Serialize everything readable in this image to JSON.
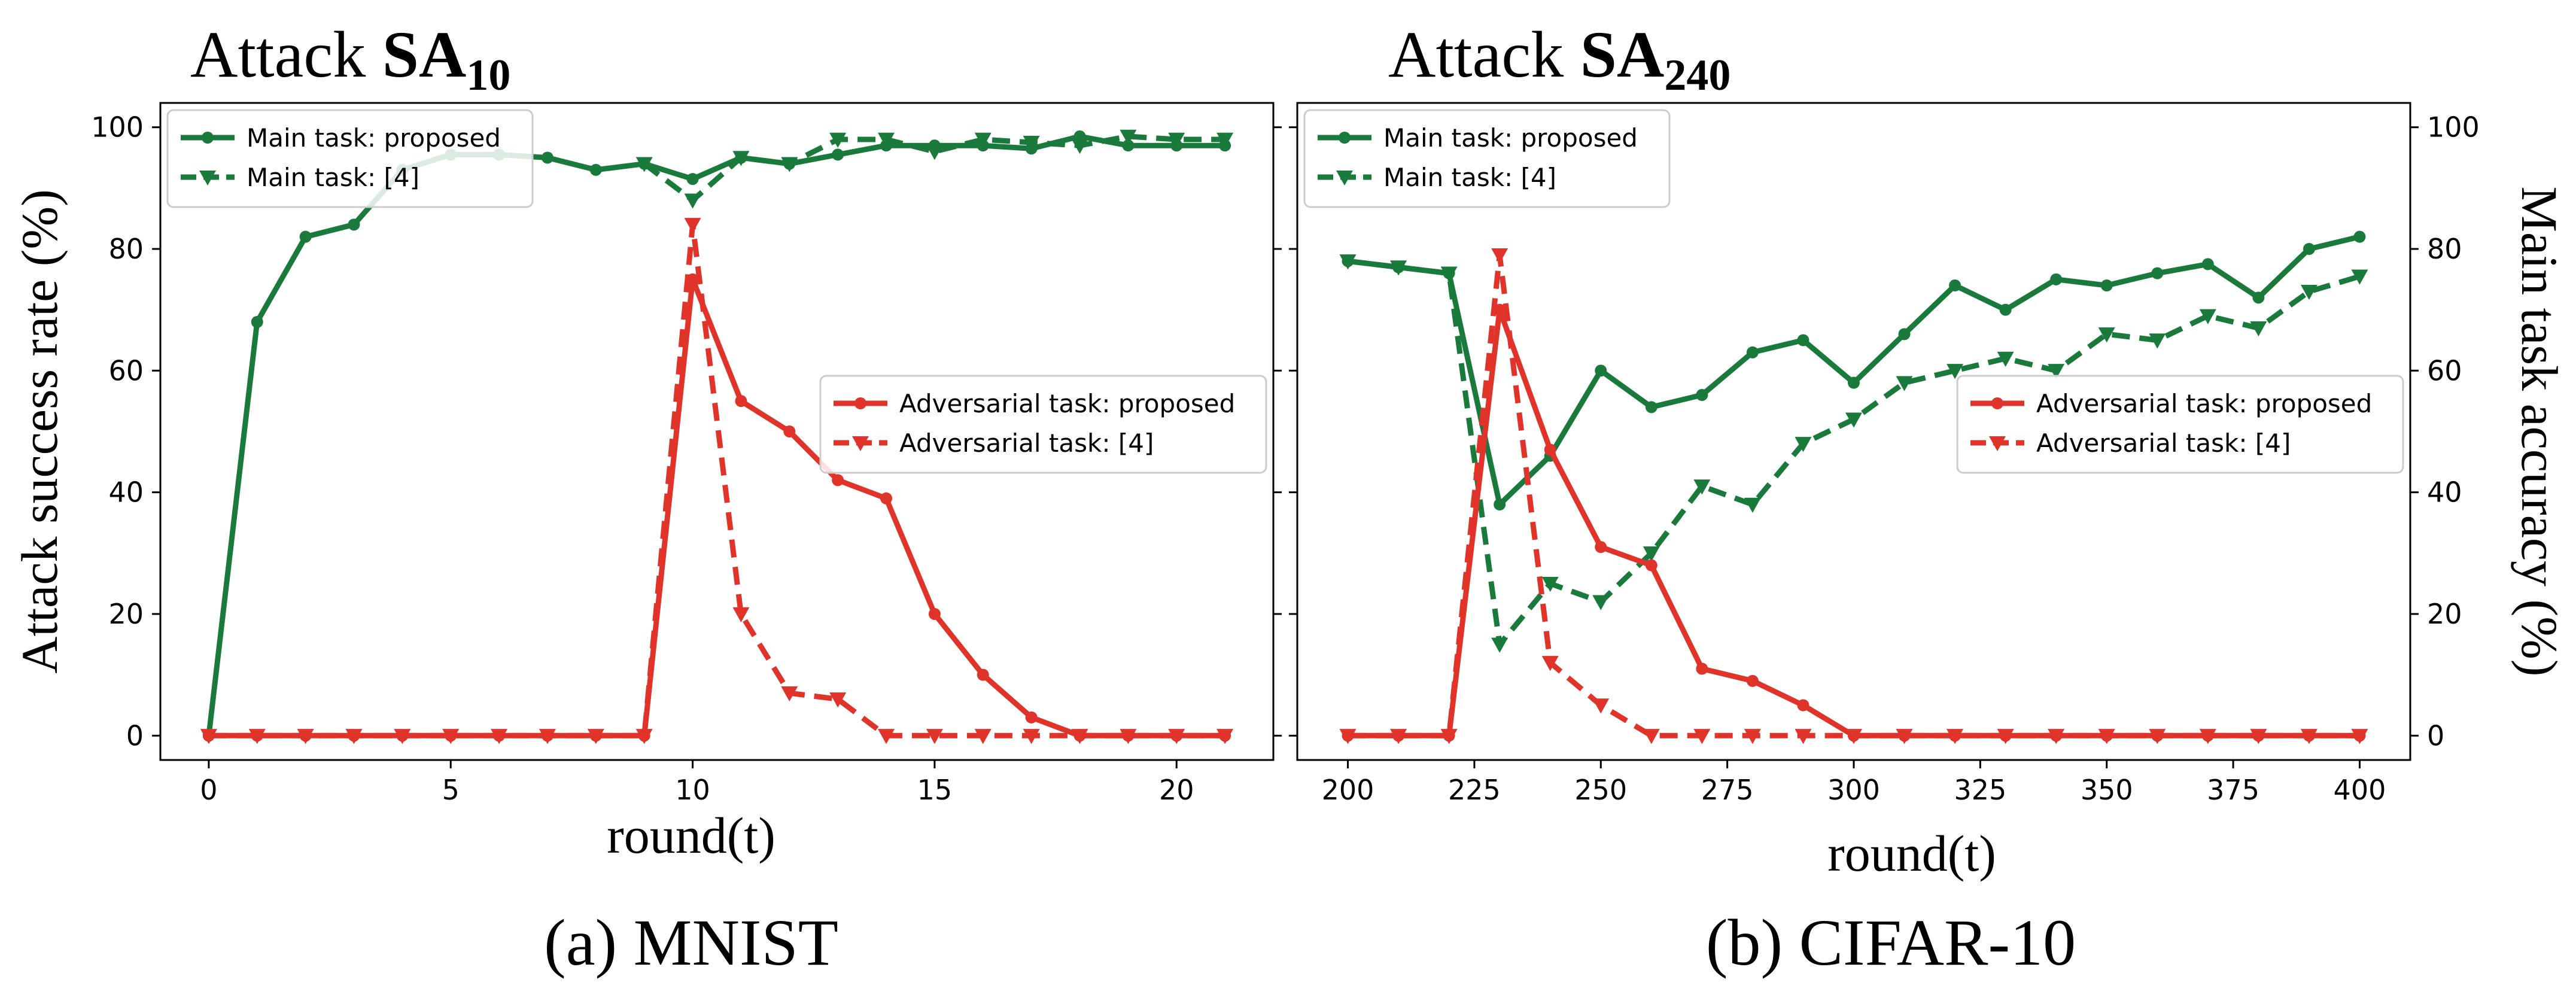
{
  "colors": {
    "main": "#1a7a3c",
    "adversarial": "#e0342a",
    "frame": "#000000",
    "legend_border": "#cccccc"
  },
  "chart_data": [
    {
      "type": "line",
      "title_prefix": "Attack ",
      "title_base": "SA",
      "title_sub": "10",
      "caption": "(a) MNIST",
      "xlabel": "round(t)",
      "ylabel": "Attack success rate (%)",
      "xlim": [
        -1,
        22
      ],
      "ylim": [
        -4,
        104
      ],
      "xticks": [
        0,
        5,
        10,
        15,
        20
      ],
      "yticks": [
        0,
        20,
        40,
        60,
        80,
        100
      ],
      "series": [
        {
          "name": "Main task: proposed",
          "role": "main",
          "style": "solid",
          "marker": "circle",
          "x": [
            0,
            1,
            2,
            3,
            4,
            5,
            6,
            7,
            8,
            9,
            10,
            11,
            12,
            13,
            14,
            15,
            16,
            17,
            18,
            19,
            20,
            21
          ],
          "y": [
            0,
            68,
            82,
            84,
            93,
            95.5,
            95.5,
            95,
            93,
            94,
            91.5,
            95,
            94,
            95.5,
            97,
            97,
            97,
            96.5,
            98.5,
            97,
            97,
            97
          ]
        },
        {
          "name": "Main task: [4]",
          "role": "main",
          "style": "dashed",
          "marker": "triangle",
          "x": [
            9,
            10,
            11,
            12,
            13,
            14,
            15,
            16,
            17,
            18,
            19,
            20,
            21
          ],
          "y": [
            94,
            88,
            95,
            94,
            98,
            98,
            96,
            98,
            97.5,
            97,
            98.5,
            98,
            98
          ]
        },
        {
          "name": "Adversarial task: proposed",
          "role": "adversarial",
          "style": "solid",
          "marker": "circle",
          "x": [
            0,
            1,
            2,
            3,
            4,
            5,
            6,
            7,
            8,
            9,
            10,
            11,
            12,
            13,
            14,
            15,
            16,
            17,
            18,
            19,
            20,
            21
          ],
          "y": [
            0,
            0,
            0,
            0,
            0,
            0,
            0,
            0,
            0,
            0,
            75,
            55,
            50,
            42,
            39,
            20,
            10,
            3,
            0,
            0,
            0,
            0
          ]
        },
        {
          "name": "Adversarial task: [4]",
          "role": "adversarial",
          "style": "dashed",
          "marker": "triangle",
          "x": [
            0,
            1,
            2,
            3,
            4,
            5,
            6,
            7,
            8,
            9,
            10,
            11,
            12,
            13,
            14,
            15,
            16,
            17,
            18,
            19,
            20,
            21
          ],
          "y": [
            0,
            0,
            0,
            0,
            0,
            0,
            0,
            0,
            0,
            0,
            84,
            20,
            7,
            6,
            0,
            0,
            0,
            0,
            0,
            0,
            0,
            0
          ]
        }
      ],
      "legends": [
        {
          "placement": "top-left",
          "series": [
            0,
            1
          ]
        },
        {
          "placement": "center-right",
          "series": [
            2,
            3
          ]
        }
      ]
    },
    {
      "type": "line",
      "title_prefix": "Attack ",
      "title_base": "SA",
      "title_sub": "240",
      "caption": "(b) CIFAR-10",
      "xlabel": "round(t)",
      "ylabel": "Main task accuracy (%)",
      "ylabel_side": "right",
      "xlim": [
        190,
        410
      ],
      "ylim": [
        -4,
        104
      ],
      "xticks": [
        200,
        225,
        250,
        275,
        300,
        325,
        350,
        375,
        400
      ],
      "yticks": [
        0,
        20,
        40,
        60,
        80,
        100
      ],
      "series": [
        {
          "name": "Main task: proposed",
          "role": "main",
          "style": "solid",
          "marker": "circle",
          "x": [
            200,
            210,
            220,
            230,
            240,
            250,
            260,
            270,
            280,
            290,
            300,
            310,
            320,
            330,
            340,
            350,
            360,
            370,
            380,
            390,
            400
          ],
          "y": [
            78,
            77,
            76,
            38,
            46,
            60,
            54,
            56,
            63,
            65,
            58,
            66,
            74,
            70,
            75,
            74,
            76,
            77.5,
            72,
            80,
            82
          ]
        },
        {
          "name": "Main task: [4]",
          "role": "main",
          "style": "dashed",
          "marker": "triangle",
          "x": [
            200,
            210,
            220,
            230,
            240,
            250,
            260,
            270,
            280,
            290,
            300,
            310,
            320,
            330,
            340,
            350,
            360,
            370,
            380,
            390,
            400
          ],
          "y": [
            78,
            77,
            76,
            15,
            25,
            22,
            30,
            41,
            38,
            48,
            52,
            58,
            60,
            62,
            60,
            66,
            65,
            69,
            67,
            73,
            75.5
          ]
        },
        {
          "name": "Adversarial task: proposed",
          "role": "adversarial",
          "style": "solid",
          "marker": "circle",
          "x": [
            200,
            210,
            220,
            230,
            240,
            250,
            260,
            270,
            280,
            290,
            300,
            310,
            320,
            330,
            340,
            350,
            360,
            370,
            380,
            390,
            400
          ],
          "y": [
            0,
            0,
            0,
            70,
            47,
            31,
            28,
            11,
            9,
            5,
            0,
            0,
            0,
            0,
            0,
            0,
            0,
            0,
            0,
            0,
            0
          ]
        },
        {
          "name": "Adversarial task: [4]",
          "role": "adversarial",
          "style": "dashed",
          "marker": "triangle",
          "x": [
            200,
            210,
            220,
            230,
            240,
            250,
            260,
            270,
            280,
            290,
            300,
            310,
            320,
            330,
            340,
            350,
            360,
            370,
            380,
            390,
            400
          ],
          "y": [
            0,
            0,
            0,
            79,
            12,
            5,
            0,
            0,
            0,
            0,
            0,
            0,
            0,
            0,
            0,
            0,
            0,
            0,
            0,
            0,
            0
          ]
        }
      ],
      "legends": [
        {
          "placement": "top-left",
          "series": [
            0,
            1
          ]
        },
        {
          "placement": "center-right",
          "series": [
            2,
            3
          ]
        }
      ]
    }
  ]
}
